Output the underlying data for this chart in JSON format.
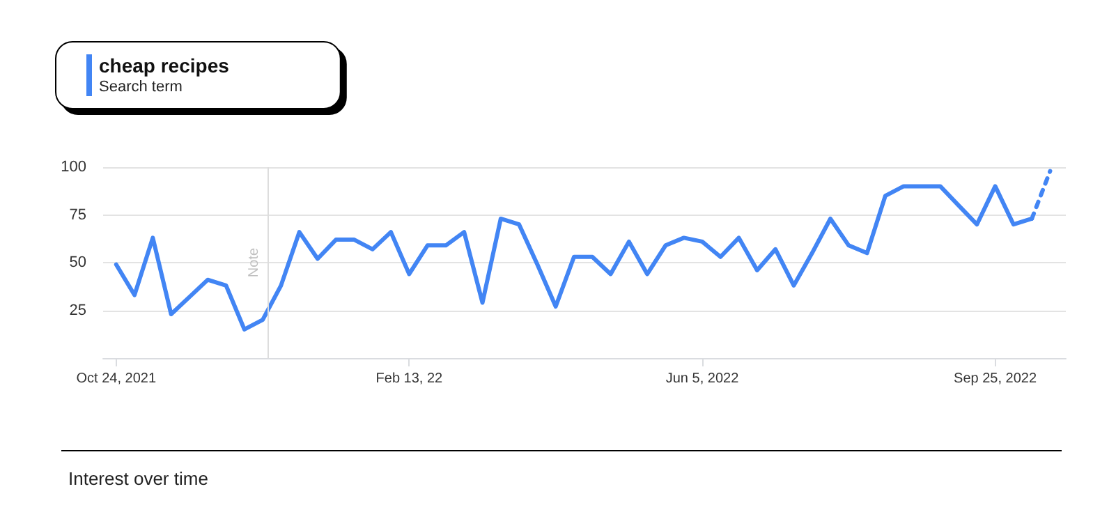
{
  "chart_data": {
    "type": "line",
    "title": "Interest over time",
    "legend_title": "Search term",
    "legend": "top left",
    "grid": "y",
    "marker": "none",
    "x": [
      "2021-10-24",
      "2021-10-31",
      "2021-11-07",
      "2021-11-14",
      "2021-11-21",
      "2021-11-28",
      "2021-12-05",
      "2021-12-12",
      "2021-12-19",
      "2021-12-26",
      "2022-01-02",
      "2022-01-09",
      "2022-01-16",
      "2022-01-23",
      "2022-01-30",
      "2022-02-06",
      "2022-02-13",
      "2022-02-20",
      "2022-02-27",
      "2022-03-06",
      "2022-03-13",
      "2022-03-20",
      "2022-03-27",
      "2022-04-03",
      "2022-04-10",
      "2022-04-17",
      "2022-04-24",
      "2022-05-01",
      "2022-05-08",
      "2022-05-15",
      "2022-05-22",
      "2022-05-29",
      "2022-06-05",
      "2022-06-12",
      "2022-06-19",
      "2022-06-26",
      "2022-07-03",
      "2022-07-10",
      "2022-07-17",
      "2022-07-24",
      "2022-07-31",
      "2022-08-07",
      "2022-08-14",
      "2022-08-21",
      "2022-08-28",
      "2022-09-04",
      "2022-09-11",
      "2022-09-18",
      "2022-09-25",
      "2022-10-02",
      "2022-10-09"
    ],
    "series": [
      {
        "name": "cheap recipes",
        "color": "#4285f4",
        "line_style": "solid",
        "values": [
          49,
          33,
          63,
          23,
          32,
          41,
          38,
          15,
          20,
          38,
          66,
          52,
          62,
          62,
          57,
          66,
          44,
          59,
          59,
          66,
          29,
          73,
          70,
          49,
          27,
          53,
          53,
          44,
          61,
          44,
          59,
          63,
          61,
          53,
          63,
          46,
          57,
          38,
          55,
          73,
          59,
          55,
          85,
          90,
          90,
          90,
          80,
          70,
          90,
          70,
          73
        ]
      },
      {
        "color": "#4285f4",
        "line_style": "dashed",
        "x": [
          "2022-10-09",
          "2022-10-16"
        ],
        "values": [
          73,
          98
        ]
      }
    ],
    "xlim": [
      "2021-10-19",
      "2022-10-22"
    ],
    "xticks": [
      {
        "value": "2021-10-24",
        "label": "Oct 24, 2021"
      },
      {
        "value": "2022-02-13",
        "label": "Feb 13, 22"
      },
      {
        "value": "2022-06-05",
        "label": "Jun 5, 2022"
      },
      {
        "value": "2022-09-25",
        "label": "Sep 25, 2022"
      }
    ],
    "ylim": [
      0,
      100
    ],
    "yticks": [
      {
        "value": 0,
        "label": null
      },
      25,
      50,
      75,
      100
    ],
    "ref_lines": [
      {
        "axis": "x",
        "value": "2021-12-21",
        "label": "Note",
        "color": "#dddddd"
      }
    ]
  }
}
